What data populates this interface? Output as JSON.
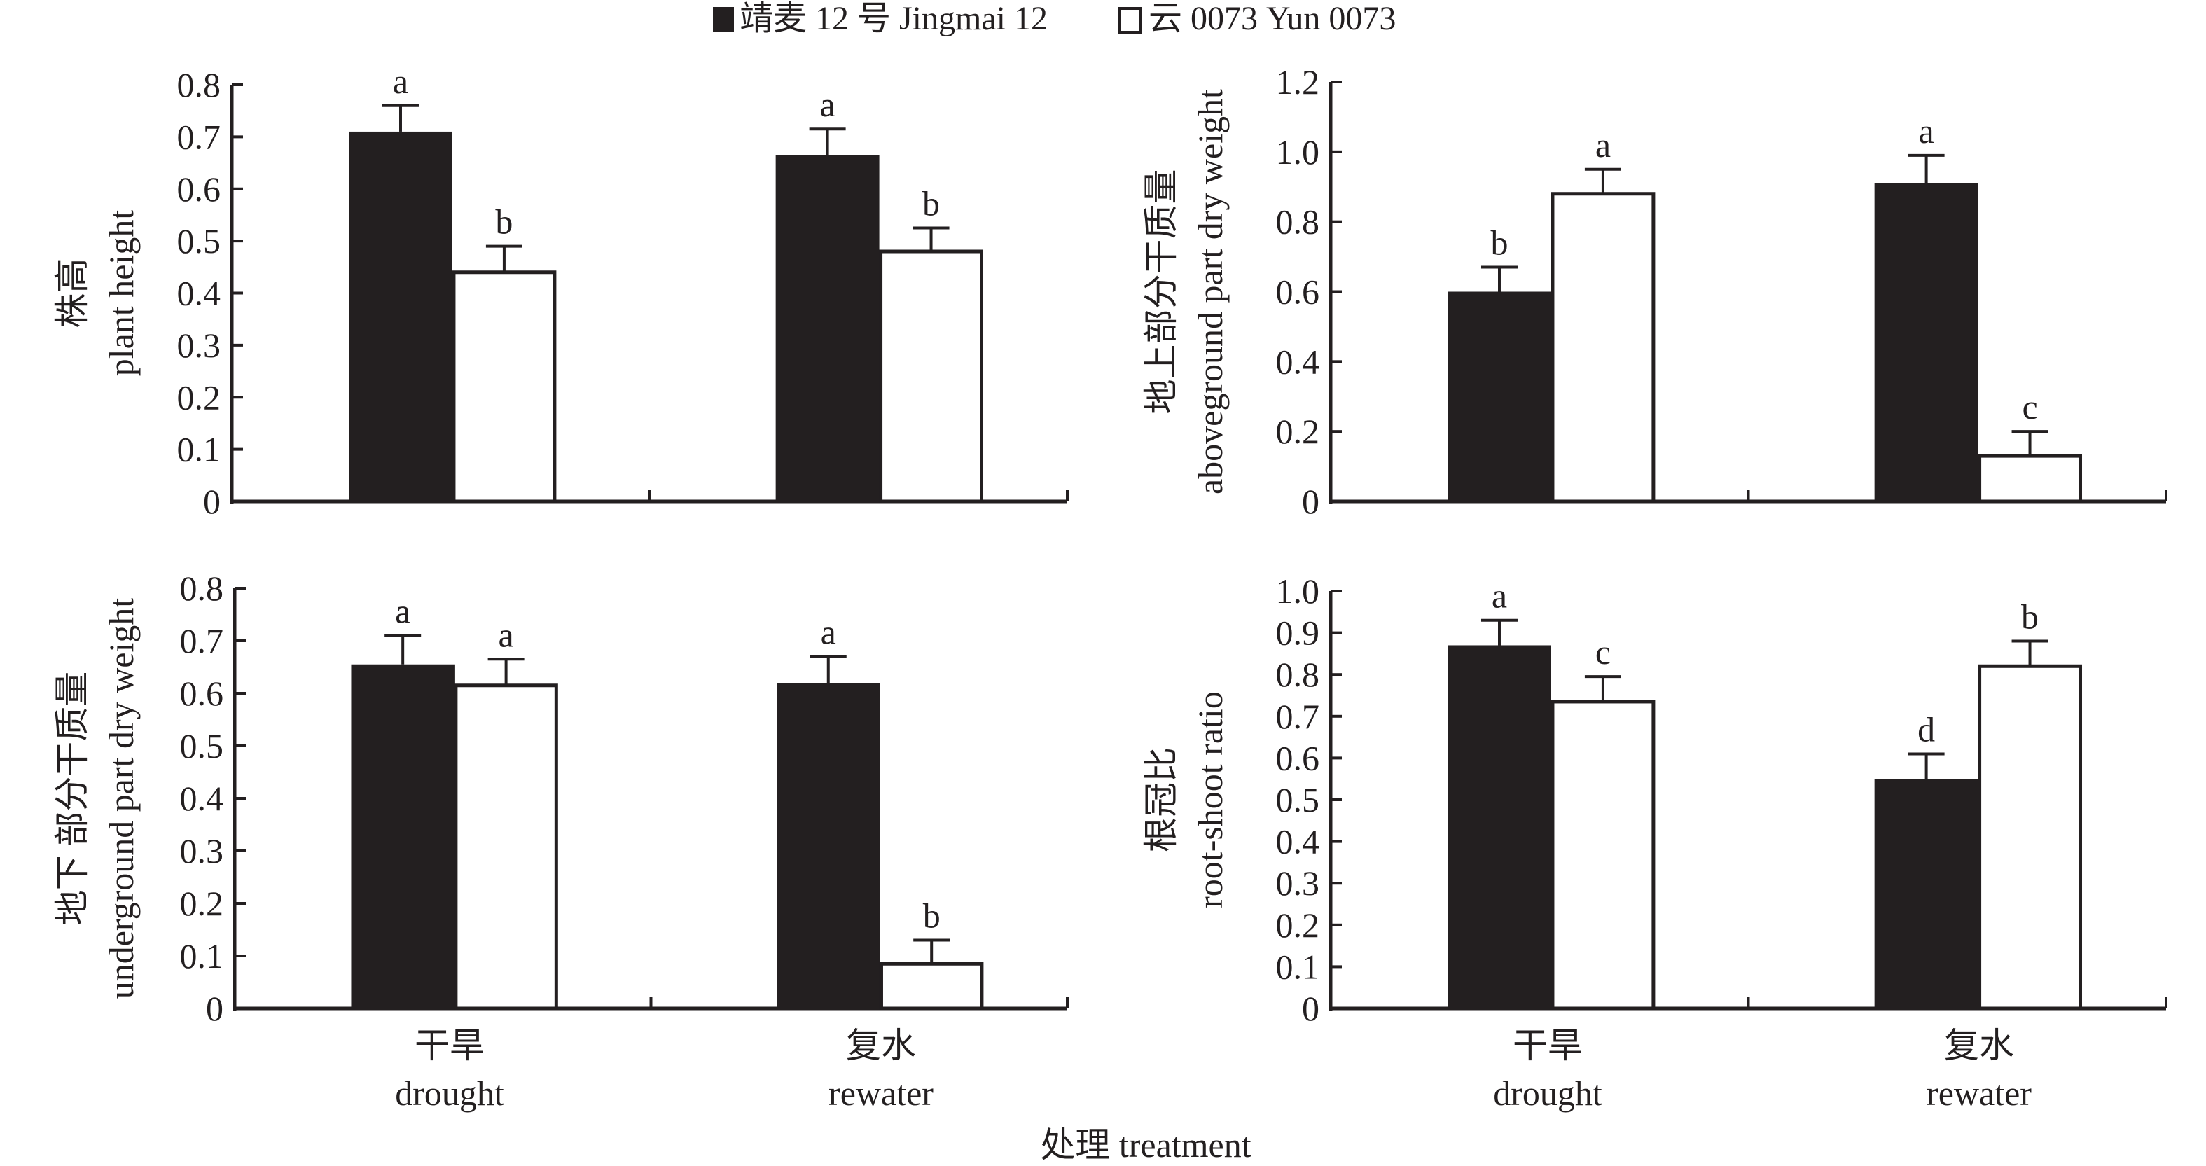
{
  "legend": {
    "items": [
      {
        "label": "靖麦 12 号 Jingmai 12",
        "fill": "#231f20"
      },
      {
        "label": "云 0073 Yun 0073",
        "fill": "#ffffff"
      }
    ]
  },
  "x_axis_title": "处理 treatment",
  "categories": [
    {
      "cn": "干旱",
      "en": "drought"
    },
    {
      "cn": "复水",
      "en": "rewater"
    }
  ],
  "chart_data": [
    {
      "type": "bar",
      "panel": "top-left",
      "ylabel_cn": "株高",
      "ylabel_en": "plant height",
      "ylim": [
        0,
        0.8
      ],
      "yticks": [
        "0",
        "0.1",
        "0.2",
        "0.3",
        "0.4",
        "0.5",
        "0.6",
        "0.7",
        "0.8"
      ],
      "categories": [
        "drought",
        "rewater"
      ],
      "series": [
        {
          "name": "Jingmai 12",
          "values": [
            0.71,
            0.665
          ],
          "errors": [
            0.05,
            0.05
          ],
          "letters": [
            "a",
            "a"
          ]
        },
        {
          "name": "Yun 0073",
          "values": [
            0.44,
            0.48
          ],
          "errors": [
            0.05,
            0.045
          ],
          "letters": [
            "b",
            "b"
          ]
        }
      ]
    },
    {
      "type": "bar",
      "panel": "top-right",
      "ylabel_cn": "地上部分干质量",
      "ylabel_en": "aboveground part dry weight",
      "ylim": [
        0,
        1.2
      ],
      "yticks": [
        "0",
        "0.2",
        "0.4",
        "0.6",
        "0.8",
        "1.0",
        "1.2"
      ],
      "categories": [
        "drought",
        "rewater"
      ],
      "series": [
        {
          "name": "Jingmai 12",
          "values": [
            0.6,
            0.91
          ],
          "errors": [
            0.07,
            0.08
          ],
          "letters": [
            "b",
            "a"
          ]
        },
        {
          "name": "Yun 0073",
          "values": [
            0.88,
            0.13
          ],
          "errors": [
            0.07,
            0.07
          ],
          "letters": [
            "a",
            "c"
          ]
        }
      ]
    },
    {
      "type": "bar",
      "panel": "bottom-left",
      "ylabel_cn": "地下 部分干质量",
      "ylabel_en": "underground part dry weight",
      "ylim": [
        0,
        0.8
      ],
      "yticks": [
        "0",
        "0.1",
        "0.2",
        "0.3",
        "0.4",
        "0.5",
        "0.6",
        "0.7",
        "0.8"
      ],
      "categories": [
        "drought",
        "rewater"
      ],
      "series": [
        {
          "name": "Jingmai 12",
          "values": [
            0.655,
            0.62
          ],
          "errors": [
            0.055,
            0.05
          ],
          "letters": [
            "a",
            "a"
          ]
        },
        {
          "name": "Yun 0073",
          "values": [
            0.615,
            0.085
          ],
          "errors": [
            0.05,
            0.045
          ],
          "letters": [
            "a",
            "b"
          ]
        }
      ]
    },
    {
      "type": "bar",
      "panel": "bottom-right",
      "ylabel_cn": "根冠比",
      "ylabel_en": "root-shoot ratio",
      "ylim": [
        0,
        1.0
      ],
      "yticks": [
        "0",
        "0.1",
        "0.2",
        "0.3",
        "0.4",
        "0.5",
        "0.6",
        "0.7",
        "0.8",
        "0.9",
        "1.0"
      ],
      "categories": [
        "drought",
        "rewater"
      ],
      "series": [
        {
          "name": "Jingmai 12",
          "values": [
            0.87,
            0.55
          ],
          "errors": [
            0.06,
            0.06
          ],
          "letters": [
            "a",
            "d"
          ]
        },
        {
          "name": "Yun 0073",
          "values": [
            0.735,
            0.82
          ],
          "errors": [
            0.06,
            0.06
          ],
          "letters": [
            "c",
            "b"
          ]
        }
      ]
    }
  ]
}
